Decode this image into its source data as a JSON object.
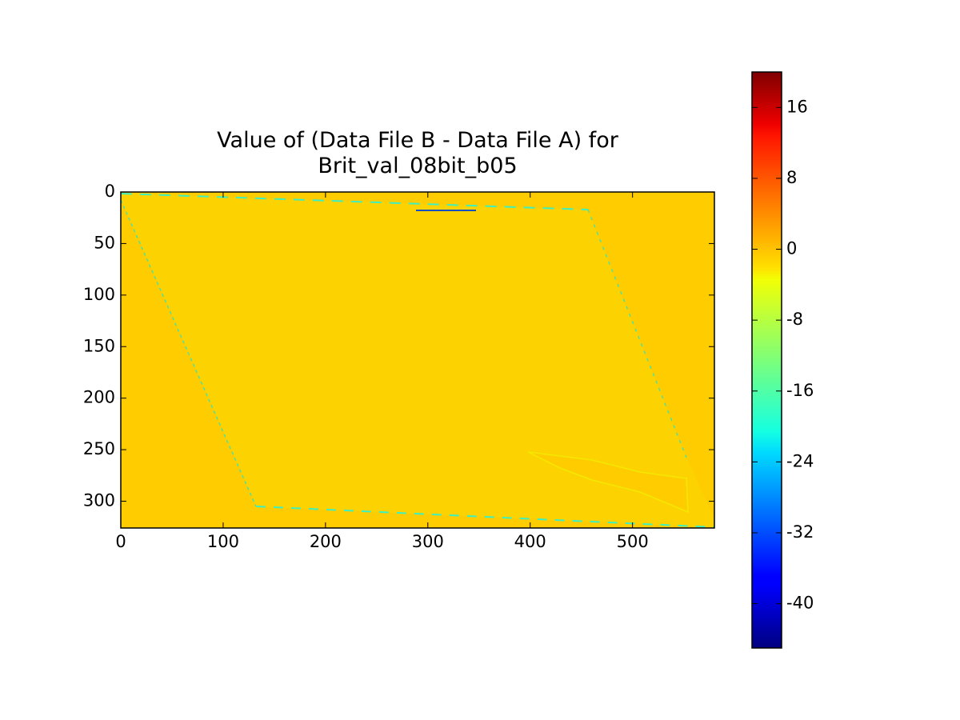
{
  "chart_data": {
    "type": "heatmap",
    "title": "Value of (Data File B - Data File A) for\nBrit_val_08bit_b05",
    "xlim": [
      0,
      580
    ],
    "xticks": [
      0,
      100,
      200,
      300,
      400,
      500
    ],
    "ylim": [
      326,
      0
    ],
    "yticks": [
      0,
      50,
      100,
      150,
      200,
      250,
      300
    ],
    "colormap": "jet",
    "clim": [
      -45,
      20
    ],
    "cticks": [
      -40,
      -32,
      -24,
      -16,
      -8,
      0,
      8,
      16
    ]
  }
}
